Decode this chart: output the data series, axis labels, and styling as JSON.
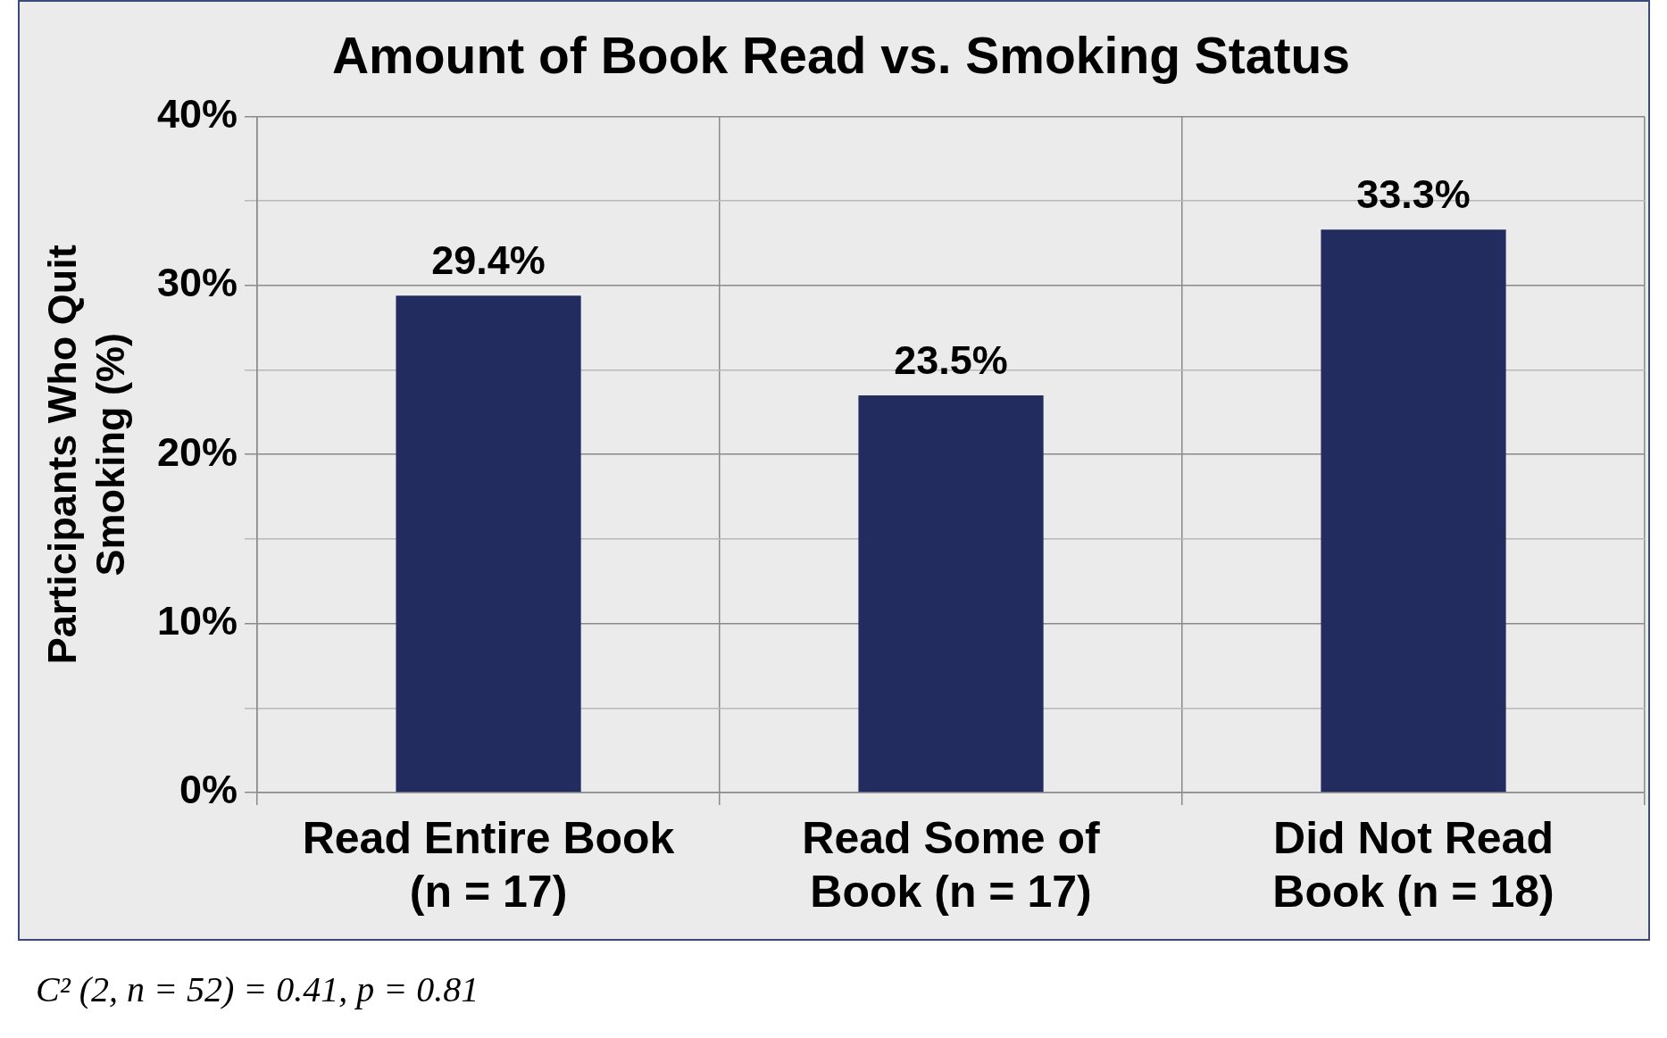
{
  "chart_data": {
    "type": "bar",
    "title": "Amount of Book Read vs. Smoking Status",
    "ylabel": "Participants Who Quit Smoking (%)",
    "categories": [
      "Read Entire Book (n = 17)",
      "Read Some of Book (n = 17)",
      "Did Not Read Book (n = 18)"
    ],
    "values": [
      29.4,
      23.5,
      33.3
    ],
    "color": "#222c5e",
    "value_labels": [
      "29.4%",
      "23.5%",
      "33.3%"
    ],
    "ylim": [
      0,
      40
    ],
    "yticks": [
      {
        "value": 0,
        "label": "0%"
      },
      {
        "value": 5,
        "label": null
      },
      {
        "value": 10,
        "label": "10%"
      },
      {
        "value": 15,
        "label": null
      },
      {
        "value": 20,
        "label": "20%"
      },
      {
        "value": 25,
        "label": null
      },
      {
        "value": 30,
        "label": "30%"
      },
      {
        "value": 35,
        "label": null
      },
      {
        "value": 40,
        "label": "40%"
      }
    ],
    "grid": true,
    "legend": false,
    "annotations": [
      "C² (2, n = 52) = 0.41, p = 0.81"
    ]
  }
}
